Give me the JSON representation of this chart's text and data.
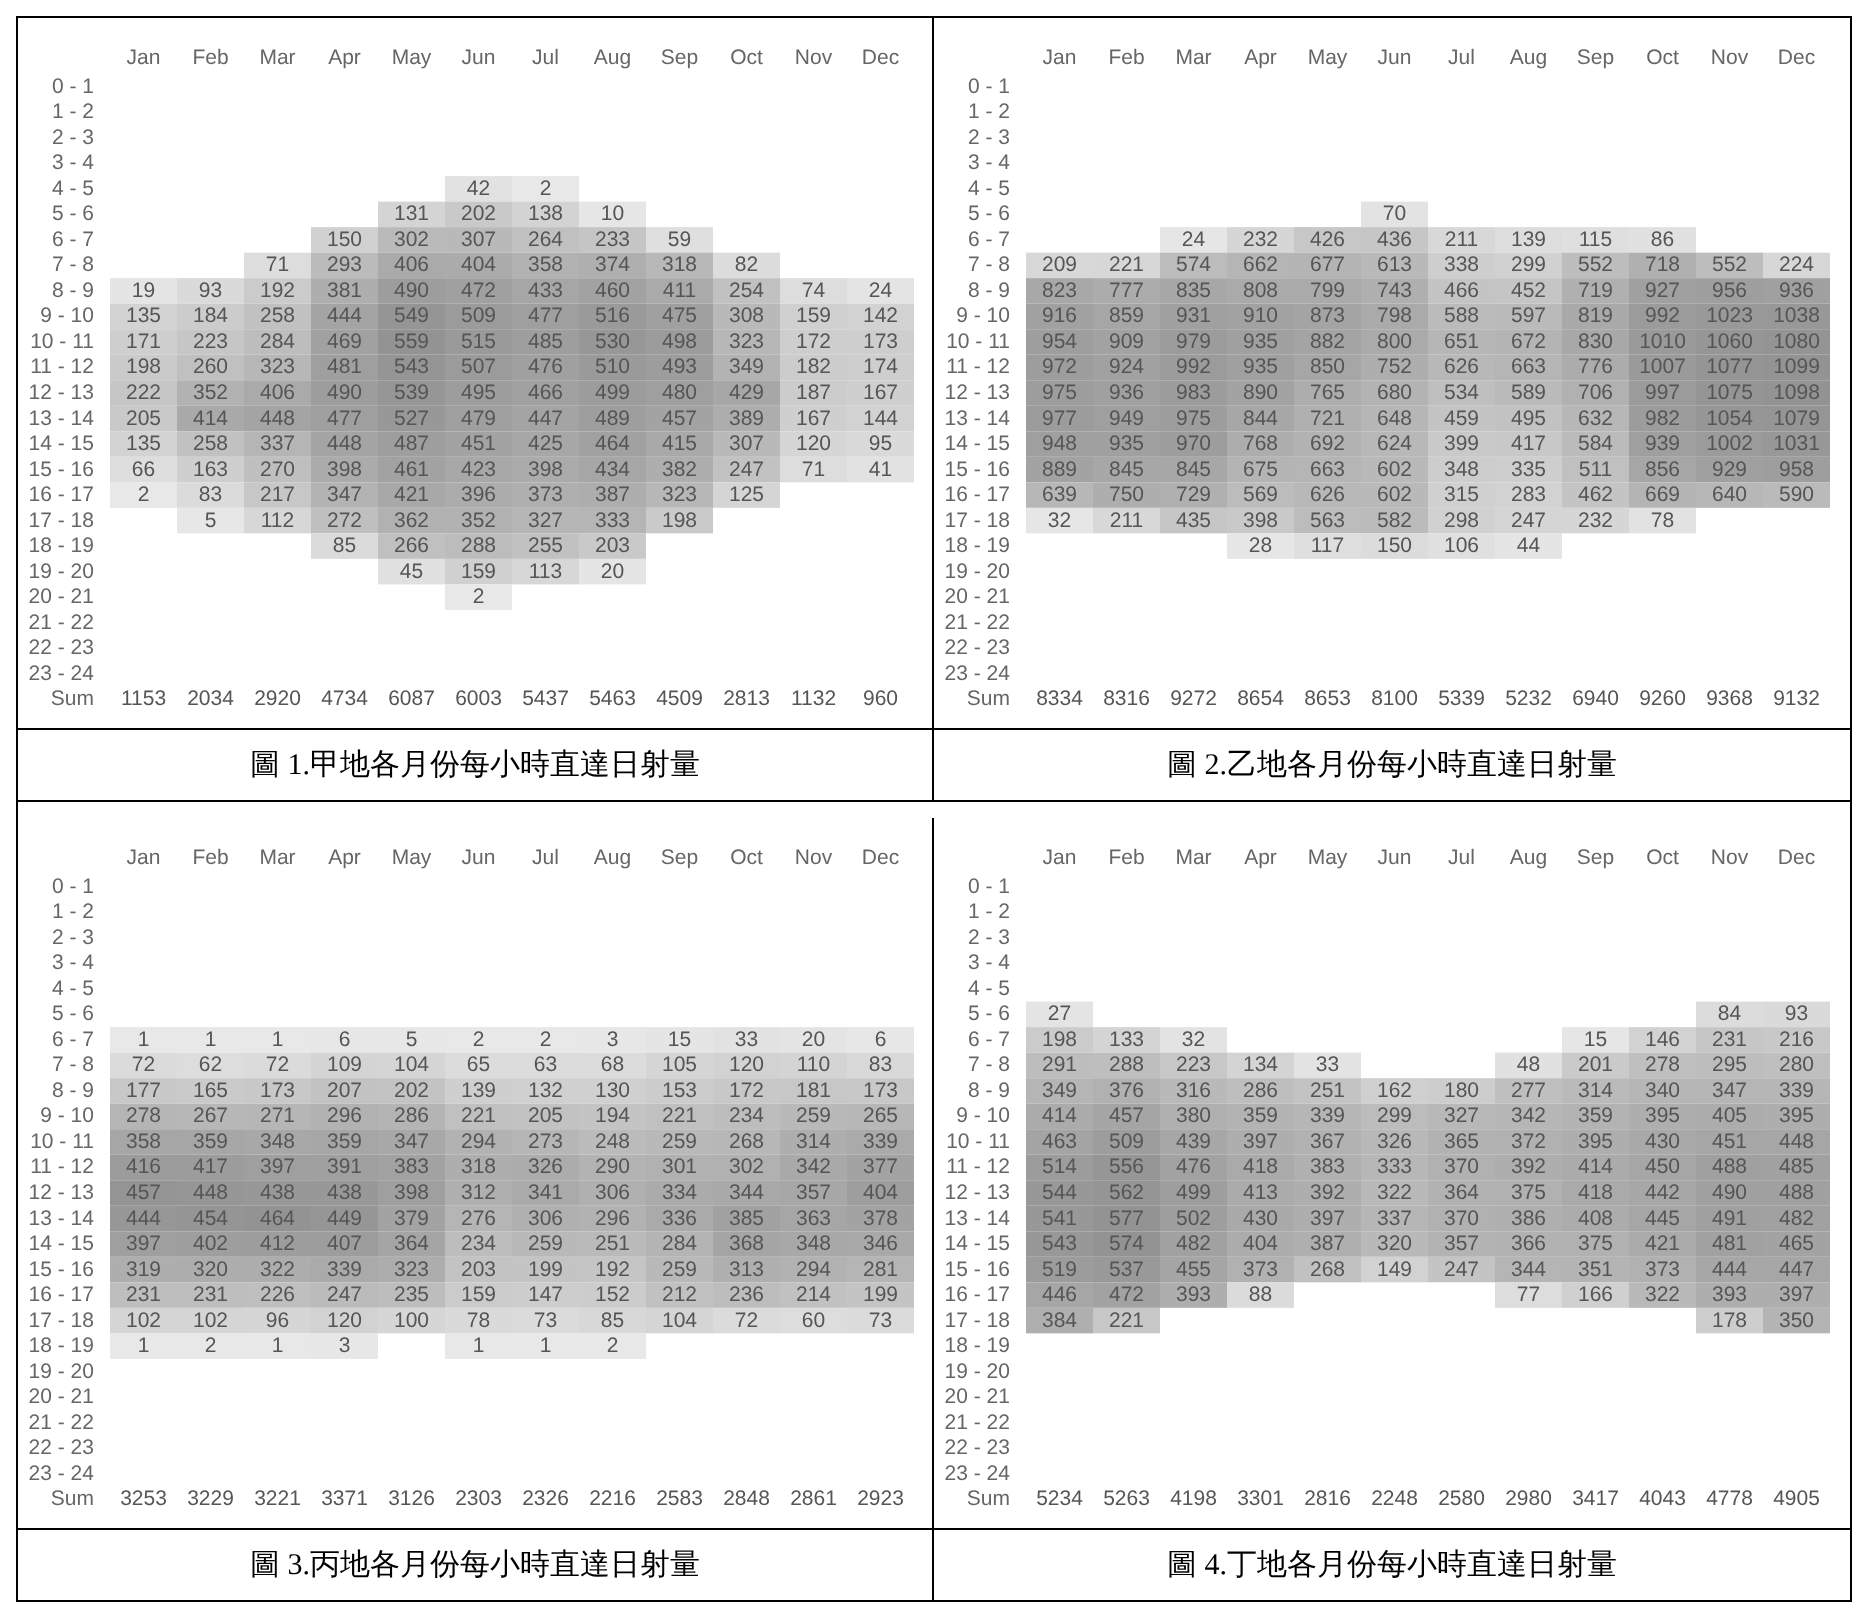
{
  "chart_data": [
    {
      "type": "heatmap",
      "title": "圖 1.甲地各月份每小時直達日射量",
      "categories": [
        "Jan",
        "Feb",
        "Mar",
        "Apr",
        "May",
        "Jun",
        "Jul",
        "Aug",
        "Sep",
        "Oct",
        "Nov",
        "Dec"
      ],
      "y_categories": [
        "0 - 1",
        "1 - 2",
        "2 - 3",
        "3 - 4",
        "4 - 5",
        "5 - 6",
        "6 - 7",
        "7 - 8",
        "8 - 9",
        "9 - 10",
        "10 - 11",
        "11 - 12",
        "12 - 13",
        "13 - 14",
        "14 - 15",
        "15 - 16",
        "16 - 17",
        "17 - 18",
        "18 - 19",
        "19 - 20",
        "20 - 21",
        "21 - 22",
        "22 - 23",
        "23 - 24",
        "Sum"
      ],
      "cells": [
        [
          null,
          null,
          null,
          null,
          null,
          null,
          null,
          null,
          null,
          null,
          null,
          null
        ],
        [
          null,
          null,
          null,
          null,
          null,
          null,
          null,
          null,
          null,
          null,
          null,
          null
        ],
        [
          null,
          null,
          null,
          null,
          null,
          null,
          null,
          null,
          null,
          null,
          null,
          null
        ],
        [
          null,
          null,
          null,
          null,
          null,
          null,
          null,
          null,
          null,
          null,
          null,
          null
        ],
        [
          null,
          null,
          null,
          null,
          null,
          42,
          2,
          null,
          null,
          null,
          null,
          null
        ],
        [
          null,
          null,
          null,
          null,
          131,
          202,
          138,
          10,
          null,
          null,
          null,
          null
        ],
        [
          null,
          null,
          null,
          150,
          302,
          307,
          264,
          233,
          59,
          null,
          null,
          null
        ],
        [
          null,
          null,
          71,
          293,
          406,
          404,
          358,
          374,
          318,
          82,
          null,
          null
        ],
        [
          19,
          93,
          192,
          381,
          490,
          472,
          433,
          460,
          411,
          254,
          74,
          24
        ],
        [
          135,
          184,
          258,
          444,
          549,
          509,
          477,
          516,
          475,
          308,
          159,
          142
        ],
        [
          171,
          223,
          284,
          469,
          559,
          515,
          485,
          530,
          498,
          323,
          172,
          173
        ],
        [
          198,
          260,
          323,
          481,
          543,
          507,
          476,
          510,
          493,
          349,
          182,
          174
        ],
        [
          222,
          352,
          406,
          490,
          539,
          495,
          466,
          499,
          480,
          429,
          187,
          167
        ],
        [
          205,
          414,
          448,
          477,
          527,
          479,
          447,
          489,
          457,
          389,
          167,
          144
        ],
        [
          135,
          258,
          337,
          448,
          487,
          451,
          425,
          464,
          415,
          307,
          120,
          95
        ],
        [
          66,
          163,
          270,
          398,
          461,
          423,
          398,
          434,
          382,
          247,
          71,
          41
        ],
        [
          2,
          83,
          217,
          347,
          421,
          396,
          373,
          387,
          323,
          125,
          null,
          null
        ],
        [
          null,
          5,
          112,
          272,
          362,
          352,
          327,
          333,
          198,
          null,
          null,
          null
        ],
        [
          null,
          null,
          null,
          85,
          266,
          288,
          255,
          203,
          null,
          null,
          null,
          null
        ],
        [
          null,
          null,
          null,
          null,
          45,
          159,
          113,
          20,
          null,
          null,
          null,
          null
        ],
        [
          null,
          null,
          null,
          null,
          null,
          2,
          null,
          null,
          null,
          null,
          null,
          null
        ],
        [
          null,
          null,
          null,
          null,
          null,
          null,
          null,
          null,
          null,
          null,
          null,
          null
        ],
        [
          null,
          null,
          null,
          null,
          null,
          null,
          null,
          null,
          null,
          null,
          null,
          null
        ],
        [
          null,
          null,
          null,
          null,
          null,
          null,
          null,
          null,
          null,
          null,
          null,
          null
        ],
        [
          null,
          null,
          null,
          null,
          null,
          null,
          null,
          null,
          null,
          null,
          null,
          null
        ]
      ],
      "data_labels": true,
      "totals": [
        "1153",
        "2034",
        "2920",
        "4734",
        "6087",
        "6003",
        "5437",
        "5463",
        "4509",
        "2813",
        "1132",
        "960"
      ]
    },
    {
      "type": "heatmap",
      "title": "圖 2.乙地各月份每小時直達日射量",
      "categories": [
        "Jan",
        "Feb",
        "Mar",
        "Apr",
        "May",
        "Jun",
        "Jul",
        "Aug",
        "Sep",
        "Oct",
        "Nov",
        "Dec"
      ],
      "y_categories": [
        "0 - 1",
        "1 - 2",
        "2 - 3",
        "3 - 4",
        "4 - 5",
        "5 - 6",
        "6 - 7",
        "7 - 8",
        "8 - 9",
        "9 - 10",
        "10 - 11",
        "11 - 12",
        "12 - 13",
        "13 - 14",
        "14 - 15",
        "15 - 16",
        "16 - 17",
        "17 - 18",
        "18 - 19",
        "19 - 20",
        "20 - 21",
        "21 - 22",
        "22 - 23",
        "23 - 24",
        "Sum"
      ],
      "cells": [
        [
          null,
          null,
          null,
          null,
          null,
          null,
          null,
          null,
          null,
          null,
          null,
          null
        ],
        [
          null,
          null,
          null,
          null,
          null,
          null,
          null,
          null,
          null,
          null,
          null,
          null
        ],
        [
          null,
          null,
          null,
          null,
          null,
          null,
          null,
          null,
          null,
          null,
          null,
          null
        ],
        [
          null,
          null,
          null,
          null,
          null,
          null,
          null,
          null,
          null,
          null,
          null,
          null
        ],
        [
          null,
          null,
          null,
          null,
          null,
          null,
          null,
          null,
          null,
          null,
          null,
          null
        ],
        [
          null,
          null,
          null,
          null,
          null,
          70,
          null,
          null,
          null,
          null,
          null,
          null
        ],
        [
          null,
          null,
          24,
          232,
          426,
          436,
          211,
          139,
          115,
          86,
          null,
          null
        ],
        [
          209,
          221,
          574,
          662,
          677,
          613,
          338,
          299,
          552,
          718,
          552,
          224
        ],
        [
          823,
          777,
          835,
          808,
          799,
          743,
          466,
          452,
          719,
          927,
          956,
          936
        ],
        [
          916,
          859,
          931,
          910,
          873,
          798,
          588,
          597,
          819,
          992,
          1023,
          1038
        ],
        [
          954,
          909,
          979,
          935,
          882,
          800,
          651,
          672,
          830,
          1010,
          1060,
          1080
        ],
        [
          972,
          924,
          992,
          935,
          850,
          752,
          626,
          663,
          776,
          1007,
          1077,
          1099
        ],
        [
          975,
          936,
          983,
          890,
          765,
          680,
          534,
          589,
          706,
          997,
          1075,
          1098
        ],
        [
          977,
          949,
          975,
          844,
          721,
          648,
          459,
          495,
          632,
          982,
          1054,
          1079
        ],
        [
          948,
          935,
          970,
          768,
          692,
          624,
          399,
          417,
          584,
          939,
          1002,
          1031
        ],
        [
          889,
          845,
          845,
          675,
          663,
          602,
          348,
          335,
          511,
          856,
          929,
          958
        ],
        [
          639,
          750,
          729,
          569,
          626,
          602,
          315,
          283,
          462,
          669,
          640,
          590
        ],
        [
          32,
          211,
          435,
          398,
          563,
          582,
          298,
          247,
          232,
          78,
          null,
          null
        ],
        [
          null,
          null,
          null,
          28,
          117,
          150,
          106,
          44,
          null,
          null,
          null,
          null
        ],
        [
          null,
          null,
          null,
          null,
          null,
          null,
          null,
          null,
          null,
          null,
          null,
          null
        ],
        [
          null,
          null,
          null,
          null,
          null,
          null,
          null,
          null,
          null,
          null,
          null,
          null
        ],
        [
          null,
          null,
          null,
          null,
          null,
          null,
          null,
          null,
          null,
          null,
          null,
          null
        ],
        [
          null,
          null,
          null,
          null,
          null,
          null,
          null,
          null,
          null,
          null,
          null,
          null
        ],
        [
          null,
          null,
          null,
          null,
          null,
          null,
          null,
          null,
          null,
          null,
          null,
          null
        ],
        [
          null,
          null,
          null,
          null,
          null,
          null,
          null,
          null,
          null,
          null,
          null,
          null
        ]
      ],
      "data_labels": true,
      "totals": [
        "8334",
        "8316",
        "9272",
        "8654",
        "8653",
        "8100",
        "5339",
        "5232",
        "6940",
        "9260",
        "9368",
        "9132"
      ]
    },
    {
      "type": "heatmap",
      "title": "圖 3.丙地各月份每小時直達日射量",
      "categories": [
        "Jan",
        "Feb",
        "Mar",
        "Apr",
        "May",
        "Jun",
        "Jul",
        "Aug",
        "Sep",
        "Oct",
        "Nov",
        "Dec"
      ],
      "y_categories": [
        "0 - 1",
        "1 - 2",
        "2 - 3",
        "3 - 4",
        "4 - 5",
        "5 - 6",
        "6 - 7",
        "7 - 8",
        "8 - 9",
        "9 - 10",
        "10 - 11",
        "11 - 12",
        "12 - 13",
        "13 - 14",
        "14 - 15",
        "15 - 16",
        "16 - 17",
        "17 - 18",
        "18 - 19",
        "19 - 20",
        "20 - 21",
        "21 - 22",
        "22 - 23",
        "23 - 24",
        "Sum"
      ],
      "cells": [
        [
          null,
          null,
          null,
          null,
          null,
          null,
          null,
          null,
          null,
          null,
          null,
          null
        ],
        [
          null,
          null,
          null,
          null,
          null,
          null,
          null,
          null,
          null,
          null,
          null,
          null
        ],
        [
          null,
          null,
          null,
          null,
          null,
          null,
          null,
          null,
          null,
          null,
          null,
          null
        ],
        [
          null,
          null,
          null,
          null,
          null,
          null,
          null,
          null,
          null,
          null,
          null,
          null
        ],
        [
          null,
          null,
          null,
          null,
          null,
          null,
          null,
          null,
          null,
          null,
          null,
          null
        ],
        [
          null,
          null,
          null,
          null,
          null,
          null,
          null,
          null,
          null,
          null,
          null,
          null
        ],
        [
          1,
          1,
          1,
          6,
          5,
          2,
          2,
          3,
          15,
          33,
          20,
          6
        ],
        [
          72,
          62,
          72,
          109,
          104,
          65,
          63,
          68,
          105,
          120,
          110,
          83
        ],
        [
          177,
          165,
          173,
          207,
          202,
          139,
          132,
          130,
          153,
          172,
          181,
          173
        ],
        [
          278,
          267,
          271,
          296,
          286,
          221,
          205,
          194,
          221,
          234,
          259,
          265
        ],
        [
          358,
          359,
          348,
          359,
          347,
          294,
          273,
          248,
          259,
          268,
          314,
          339
        ],
        [
          416,
          417,
          397,
          391,
          383,
          318,
          326,
          290,
          301,
          302,
          342,
          377
        ],
        [
          457,
          448,
          438,
          438,
          398,
          312,
          341,
          306,
          334,
          344,
          357,
          404
        ],
        [
          444,
          454,
          464,
          449,
          379,
          276,
          306,
          296,
          336,
          385,
          363,
          378
        ],
        [
          397,
          402,
          412,
          407,
          364,
          234,
          259,
          251,
          284,
          368,
          348,
          346
        ],
        [
          319,
          320,
          322,
          339,
          323,
          203,
          199,
          192,
          259,
          313,
          294,
          281
        ],
        [
          231,
          231,
          226,
          247,
          235,
          159,
          147,
          152,
          212,
          236,
          214,
          199
        ],
        [
          102,
          102,
          96,
          120,
          100,
          78,
          73,
          85,
          104,
          72,
          60,
          73
        ],
        [
          1,
          2,
          1,
          3,
          null,
          1,
          1,
          2,
          null,
          null,
          null,
          null
        ],
        [
          null,
          null,
          null,
          null,
          null,
          null,
          null,
          null,
          null,
          null,
          null,
          null
        ],
        [
          null,
          null,
          null,
          null,
          null,
          null,
          null,
          null,
          null,
          null,
          null,
          null
        ],
        [
          null,
          null,
          null,
          null,
          null,
          null,
          null,
          null,
          null,
          null,
          null,
          null
        ],
        [
          null,
          null,
          null,
          null,
          null,
          null,
          null,
          null,
          null,
          null,
          null,
          null
        ],
        [
          null,
          null,
          null,
          null,
          null,
          null,
          null,
          null,
          null,
          null,
          null,
          null
        ],
        [
          null,
          null,
          null,
          null,
          null,
          null,
          null,
          null,
          null,
          null,
          null,
          null
        ]
      ],
      "data_labels": true,
      "totals": [
        "3253",
        "3229",
        "3221",
        "3371",
        "3126",
        "2303",
        "2326",
        "2216",
        "2583",
        "2848",
        "2861",
        "2923"
      ]
    },
    {
      "type": "heatmap",
      "title": "圖 4.丁地各月份每小時直達日射量",
      "categories": [
        "Jan",
        "Feb",
        "Mar",
        "Apr",
        "May",
        "Jun",
        "Jul",
        "Aug",
        "Sep",
        "Oct",
        "Nov",
        "Dec"
      ],
      "y_categories": [
        "0 - 1",
        "1 - 2",
        "2 - 3",
        "3 - 4",
        "4 - 5",
        "5 - 6",
        "6 - 7",
        "7 - 8",
        "8 - 9",
        "9 - 10",
        "10 - 11",
        "11 - 12",
        "12 - 13",
        "13 - 14",
        "14 - 15",
        "15 - 16",
        "16 - 17",
        "17 - 18",
        "18 - 19",
        "19 - 20",
        "20 - 21",
        "21 - 22",
        "22 - 23",
        "23 - 24",
        "Sum"
      ],
      "cells": [
        [
          null,
          null,
          null,
          null,
          null,
          null,
          null,
          null,
          null,
          null,
          null,
          null
        ],
        [
          null,
          null,
          null,
          null,
          null,
          null,
          null,
          null,
          null,
          null,
          null,
          null
        ],
        [
          null,
          null,
          null,
          null,
          null,
          null,
          null,
          null,
          null,
          null,
          null,
          null
        ],
        [
          null,
          null,
          null,
          null,
          null,
          null,
          null,
          null,
          null,
          null,
          null,
          null
        ],
        [
          null,
          null,
          null,
          null,
          null,
          null,
          null,
          null,
          null,
          null,
          null,
          null
        ],
        [
          27,
          null,
          null,
          null,
          null,
          null,
          null,
          null,
          null,
          null,
          84,
          93
        ],
        [
          198,
          133,
          32,
          null,
          null,
          null,
          null,
          null,
          15,
          146,
          231,
          216
        ],
        [
          291,
          288,
          223,
          134,
          33,
          null,
          null,
          48,
          201,
          278,
          295,
          280
        ],
        [
          349,
          376,
          316,
          286,
          251,
          162,
          180,
          277,
          314,
          340,
          347,
          339
        ],
        [
          414,
          457,
          380,
          359,
          339,
          299,
          327,
          342,
          359,
          395,
          405,
          395
        ],
        [
          463,
          509,
          439,
          397,
          367,
          326,
          365,
          372,
          395,
          430,
          451,
          448
        ],
        [
          514,
          556,
          476,
          418,
          383,
          333,
          370,
          392,
          414,
          450,
          488,
          485
        ],
        [
          544,
          562,
          499,
          413,
          392,
          322,
          364,
          375,
          418,
          442,
          490,
          488
        ],
        [
          541,
          577,
          502,
          430,
          397,
          337,
          370,
          386,
          408,
          445,
          491,
          482
        ],
        [
          543,
          574,
          482,
          404,
          387,
          320,
          357,
          366,
          375,
          421,
          481,
          465
        ],
        [
          519,
          537,
          455,
          373,
          268,
          149,
          247,
          344,
          351,
          373,
          444,
          447
        ],
        [
          446,
          472,
          393,
          88,
          null,
          null,
          null,
          77,
          166,
          322,
          393,
          397
        ],
        [
          384,
          221,
          null,
          null,
          null,
          null,
          null,
          null,
          null,
          null,
          178,
          350
        ],
        [
          null,
          null,
          null,
          null,
          null,
          null,
          null,
          null,
          null,
          null,
          null,
          null
        ],
        [
          null,
          null,
          null,
          null,
          null,
          null,
          null,
          null,
          null,
          null,
          null,
          null
        ],
        [
          null,
          null,
          null,
          null,
          null,
          null,
          null,
          null,
          null,
          null,
          null,
          null
        ],
        [
          null,
          null,
          null,
          null,
          null,
          null,
          null,
          null,
          null,
          null,
          null,
          null
        ],
        [
          null,
          null,
          null,
          null,
          null,
          null,
          null,
          null,
          null,
          null,
          null,
          null
        ],
        [
          null,
          null,
          null,
          null,
          null,
          null,
          null,
          null,
          null,
          null,
          null,
          null
        ],
        [
          null,
          null,
          null,
          null,
          null,
          null,
          null,
          null,
          null,
          null,
          null,
          null
        ]
      ],
      "data_labels": true,
      "totals": [
        "5234",
        "5263",
        "4198",
        "3301",
        "2816",
        "2248",
        "2580",
        "2980",
        "3417",
        "4043",
        "4778",
        "4905"
      ]
    }
  ]
}
